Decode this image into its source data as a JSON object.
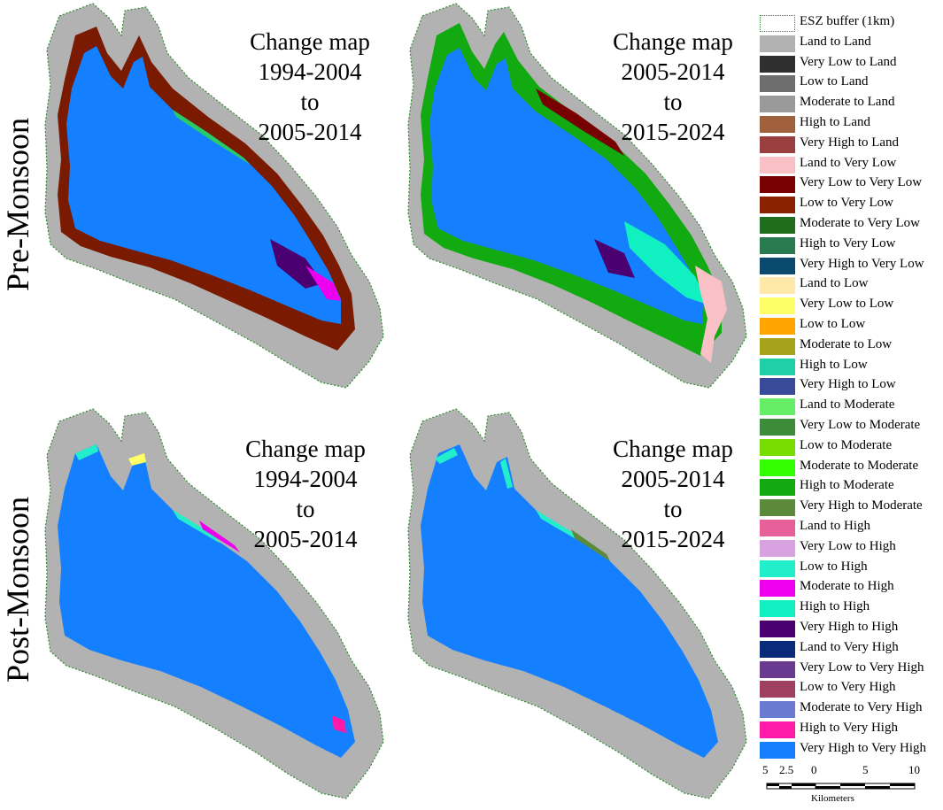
{
  "rows": [
    {
      "label": "Pre-Monsoon"
    },
    {
      "label": "Post-Monsoon"
    }
  ],
  "maps": [
    {
      "title": [
        "Change map",
        "1994-2004",
        "to",
        "2005-2014"
      ],
      "season": "Pre-Monsoon"
    },
    {
      "title": [
        "Change map",
        "2005-2014",
        "to",
        "2015-2024"
      ],
      "season": "Pre-Monsoon"
    },
    {
      "title": [
        "Change map",
        "1994-2004",
        "to",
        "2005-2014"
      ],
      "season": "Post-Monsoon"
    },
    {
      "title": [
        "Change map",
        "2005-2014",
        "to",
        "2015-2024"
      ],
      "season": "Post-Monsoon"
    }
  ],
  "legend": {
    "items": [
      {
        "label": "ESZ buffer (1km)",
        "color": "#ffffff",
        "outline": "#2e8b2e",
        "dashed": true
      },
      {
        "label": "Land to Land",
        "color": "#b2b2b2"
      },
      {
        "label": "Very Low to Land",
        "color": "#2f2f2f"
      },
      {
        "label": "Low to Land",
        "color": "#6e6e6e"
      },
      {
        "label": "Moderate to Land",
        "color": "#9a9a9a"
      },
      {
        "label": "High to Land",
        "color": "#a0603c"
      },
      {
        "label": "Very High to Land",
        "color": "#9a3f3f"
      },
      {
        "label": "Land to Very Low",
        "color": "#f9c0c6"
      },
      {
        "label": "Very Low to Very Low",
        "color": "#780000"
      },
      {
        "label": "Low to Very Low",
        "color": "#8a2200"
      },
      {
        "label": "Moderate to Very Low",
        "color": "#1e6e1e"
      },
      {
        "label": "High to Very Low",
        "color": "#2a7a50"
      },
      {
        "label": "Very High to Very Low",
        "color": "#0a4a6e"
      },
      {
        "label": "Land to Low",
        "color": "#ffe9a8"
      },
      {
        "label": "Very Low to Low",
        "color": "#ffff66"
      },
      {
        "label": "Low to Low",
        "color": "#ffa500"
      },
      {
        "label": "Moderate to Low",
        "color": "#a6a21a"
      },
      {
        "label": "High to Low",
        "color": "#1ecfa8"
      },
      {
        "label": "Very High to Low",
        "color": "#3a4a9a"
      },
      {
        "label": "Land to Moderate",
        "color": "#66ee66"
      },
      {
        "label": "Very Low to Moderate",
        "color": "#3c8c3c"
      },
      {
        "label": "Low to Moderate",
        "color": "#77dd00"
      },
      {
        "label": "Moderate to Moderate",
        "color": "#33ff00"
      },
      {
        "label": "High to Moderate",
        "color": "#11aa11"
      },
      {
        "label": "Very High to Moderate",
        "color": "#5a8a3a"
      },
      {
        "label": "Land to High",
        "color": "#e8609a"
      },
      {
        "label": "Very Low to High",
        "color": "#d8a2e0"
      },
      {
        "label": "Low to High",
        "color": "#22eecc"
      },
      {
        "label": "Moderate to High",
        "color": "#ee00ee"
      },
      {
        "label": "High to High",
        "color": "#11f0c0"
      },
      {
        "label": "Very High to High",
        "color": "#4a0070"
      },
      {
        "label": "Land to Very High",
        "color": "#0a2a7a"
      },
      {
        "label": "Very Low to Very High",
        "color": "#6a3a90"
      },
      {
        "label": "Low to Very High",
        "color": "#a04060"
      },
      {
        "label": "Moderate to Very High",
        "color": "#6a7ad0"
      },
      {
        "label": "High to Very High",
        "color": "#ff1aa8"
      },
      {
        "label": "Very High to Very High",
        "color": "#1480ff"
      }
    ]
  },
  "scalebar": {
    "ticks": [
      "5",
      "2.5",
      "0",
      "5",
      "10"
    ],
    "unit": "Kilometers"
  },
  "colors": {
    "buffer": "#b2b2b2",
    "water": "#1480ff",
    "outline": "#2e8b2e"
  }
}
